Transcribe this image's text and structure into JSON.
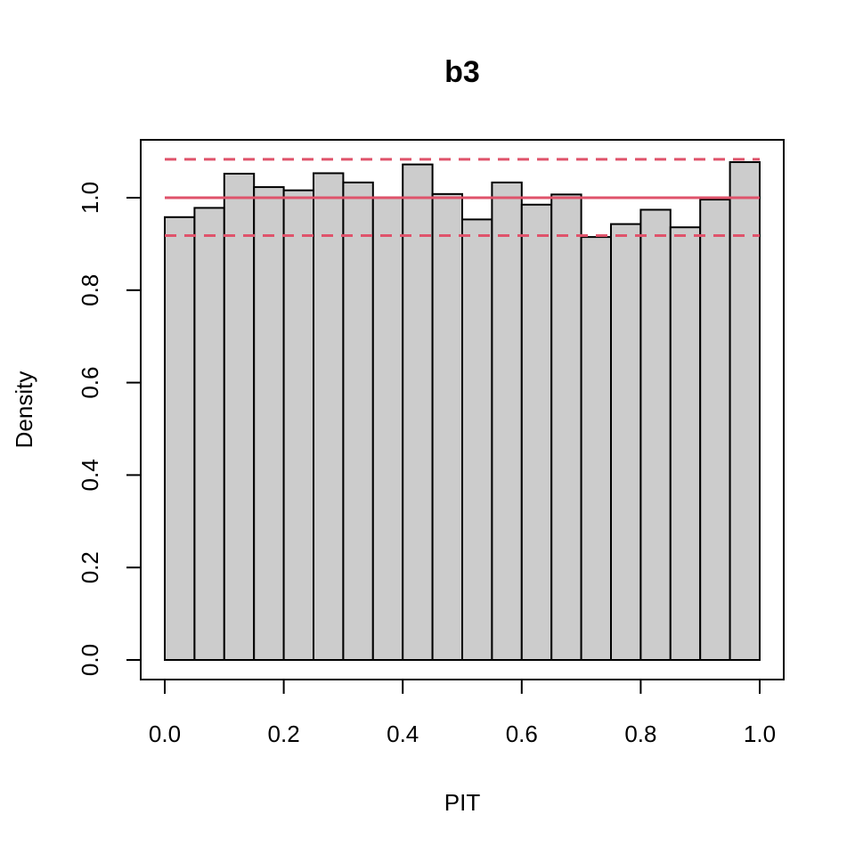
{
  "chart_data": {
    "type": "bar",
    "title": "b3",
    "xlabel": "PIT",
    "ylabel": "Density",
    "x_ticks": [
      "0.0",
      "0.2",
      "0.4",
      "0.6",
      "0.8",
      "1.0"
    ],
    "y_ticks": [
      "0.0",
      "0.2",
      "0.4",
      "0.6",
      "0.8",
      "1.0"
    ],
    "xlim": [
      0,
      1
    ],
    "ylim": [
      0,
      1.1
    ],
    "bin_width": 0.05,
    "bins": [
      0.0,
      0.05,
      0.1,
      0.15,
      0.2,
      0.25,
      0.3,
      0.35,
      0.4,
      0.45,
      0.5,
      0.55,
      0.6,
      0.65,
      0.7,
      0.75,
      0.8,
      0.85,
      0.9,
      0.95
    ],
    "values": [
      0.958,
      0.978,
      1.052,
      1.023,
      1.016,
      1.053,
      1.033,
      1.001,
      1.072,
      1.008,
      0.953,
      1.033,
      0.985,
      1.007,
      0.915,
      0.943,
      0.974,
      0.936,
      0.996,
      1.077
    ],
    "reference_lines": [
      {
        "style": "solid",
        "y": 1.0,
        "color": "#DF536B"
      },
      {
        "style": "dashed",
        "y": 1.083,
        "color": "#DF536B"
      },
      {
        "style": "dashed",
        "y": 0.918,
        "color": "#DF536B"
      }
    ],
    "grid": false,
    "colors": {
      "bar_fill": "#cccccc",
      "bar_stroke": "#000000",
      "reference": "#DF536B"
    }
  }
}
